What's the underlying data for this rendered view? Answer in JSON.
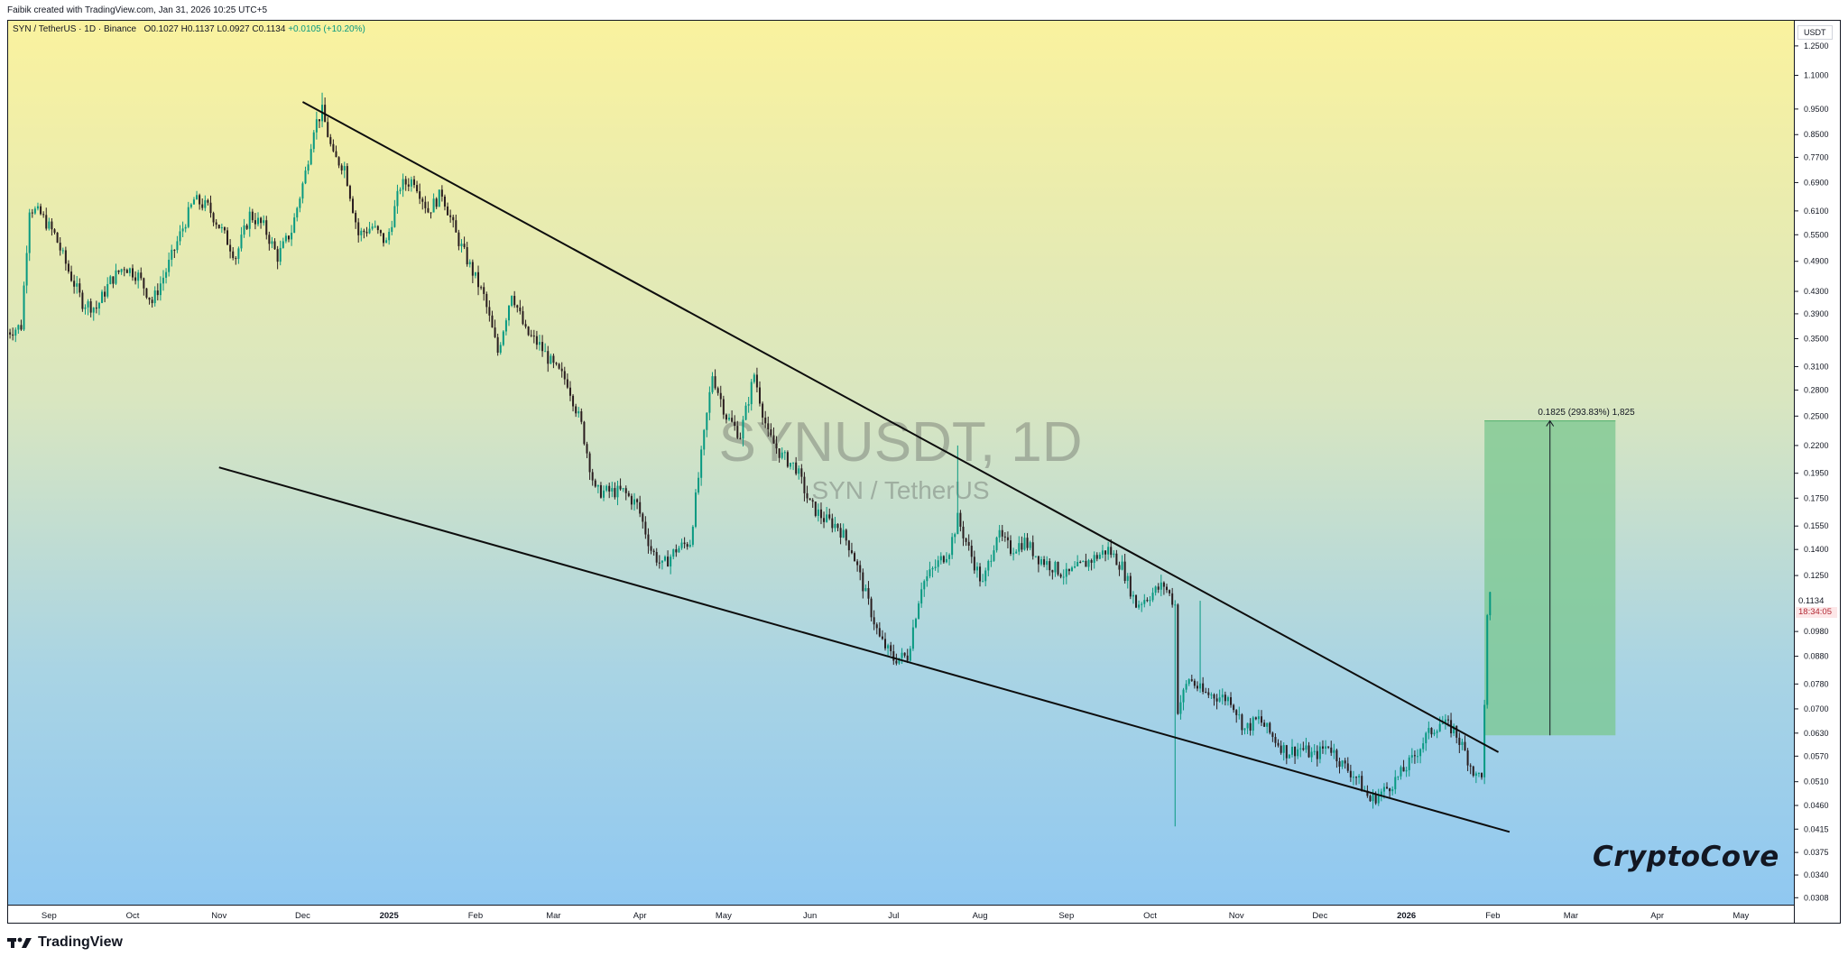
{
  "header": {
    "caption": "Faibik created with TradingView.com, Jan 31, 2026 10:25 UTC+5"
  },
  "legend": {
    "symbol": "SYN / TetherUS · 1D · Binance",
    "ohlc": "O0.1027 H0.1137 L0.0927 C0.1134",
    "change": "+0.0105 (+10.20%)"
  },
  "watermark": {
    "symbol": "SYNUSDT, 1D",
    "pair": "SYN / TetherUS"
  },
  "brand_sign": "CryptoCove",
  "measure_label": "0.1825 (293.83%) 1,825",
  "price_axis": {
    "currency": "USDT",
    "last_price": "0.1134",
    "countdown": "18:34:05"
  },
  "footer": {
    "brand": "TradingView"
  },
  "colors": {
    "candle_up": "#089981",
    "candle_down": "#2a1d1f",
    "target_box": "#79c78f",
    "trendline": "#0d0d0d",
    "bg_top": "#faf29e",
    "bg_bottom": "#8ec7f2"
  },
  "chart_data": {
    "type": "candlestick",
    "scale": "log",
    "ylim": [
      0.03,
      1.4
    ],
    "y_ticks": [
      "1.2500",
      "1.1000",
      "0.9500",
      "0.8500",
      "0.7700",
      "0.6900",
      "0.6100",
      "0.5500",
      "0.4900",
      "0.4300",
      "0.3900",
      "0.3500",
      "0.3100",
      "0.2800",
      "0.2500",
      "0.2200",
      "0.1950",
      "0.1750",
      "0.1550",
      "0.1400",
      "0.1250",
      "0.0980",
      "0.0880",
      "0.0780",
      "0.0700",
      "0.0630",
      "0.0570",
      "0.0510",
      "0.0460",
      "0.0415",
      "0.0375",
      "0.0340",
      "0.0308"
    ],
    "x_range": [
      "2024-08-17",
      "2026-05-20"
    ],
    "x_ticks": [
      {
        "label": "Sep",
        "date": "2024-09-01"
      },
      {
        "label": "Oct",
        "date": "2024-10-01"
      },
      {
        "label": "Nov",
        "date": "2024-11-01"
      },
      {
        "label": "Dec",
        "date": "2024-12-01"
      },
      {
        "label": "2025",
        "date": "2025-01-01"
      },
      {
        "label": "Feb",
        "date": "2025-02-01"
      },
      {
        "label": "Mar",
        "date": "2025-03-01"
      },
      {
        "label": "Apr",
        "date": "2025-04-01"
      },
      {
        "label": "May",
        "date": "2025-05-01"
      },
      {
        "label": "Jun",
        "date": "2025-06-01"
      },
      {
        "label": "Jul",
        "date": "2025-07-01"
      },
      {
        "label": "Aug",
        "date": "2025-08-01"
      },
      {
        "label": "Sep",
        "date": "2025-09-01"
      },
      {
        "label": "Oct",
        "date": "2025-10-01"
      },
      {
        "label": "Nov",
        "date": "2025-11-01"
      },
      {
        "label": "Dec",
        "date": "2025-12-01"
      },
      {
        "label": "2026",
        "date": "2026-01-01"
      },
      {
        "label": "Feb",
        "date": "2026-02-01"
      },
      {
        "label": "Mar",
        "date": "2026-03-01"
      },
      {
        "label": "Apr",
        "date": "2026-04-01"
      },
      {
        "label": "May",
        "date": "2026-05-01"
      }
    ],
    "close_series": [
      [
        "2024-08-17",
        0.36
      ],
      [
        "2024-08-22",
        0.37
      ],
      [
        "2024-08-25",
        0.62
      ],
      [
        "2024-08-29",
        0.6
      ],
      [
        "2024-09-03",
        0.55
      ],
      [
        "2024-09-08",
        0.47
      ],
      [
        "2024-09-13",
        0.41
      ],
      [
        "2024-09-18",
        0.4
      ],
      [
        "2024-09-23",
        0.45
      ],
      [
        "2024-09-28",
        0.48
      ],
      [
        "2024-10-03",
        0.46
      ],
      [
        "2024-10-08",
        0.41
      ],
      [
        "2024-10-13",
        0.47
      ],
      [
        "2024-10-18",
        0.55
      ],
      [
        "2024-10-23",
        0.64
      ],
      [
        "2024-10-28",
        0.62
      ],
      [
        "2024-11-02",
        0.56
      ],
      [
        "2024-11-07",
        0.5
      ],
      [
        "2024-11-12",
        0.6
      ],
      [
        "2024-11-17",
        0.57
      ],
      [
        "2024-11-22",
        0.5
      ],
      [
        "2024-11-27",
        0.56
      ],
      [
        "2024-12-02",
        0.72
      ],
      [
        "2024-12-05",
        0.88
      ],
      [
        "2024-12-08",
        0.94
      ],
      [
        "2024-12-12",
        0.77
      ],
      [
        "2024-12-16",
        0.74
      ],
      [
        "2024-12-21",
        0.55
      ],
      [
        "2024-12-26",
        0.57
      ],
      [
        "2024-12-31",
        0.53
      ],
      [
        "2025-01-05",
        0.68
      ],
      [
        "2025-01-10",
        0.7
      ],
      [
        "2025-01-15",
        0.61
      ],
      [
        "2025-01-20",
        0.66
      ],
      [
        "2025-01-25",
        0.55
      ],
      [
        "2025-01-30",
        0.48
      ],
      [
        "2025-02-04",
        0.42
      ],
      [
        "2025-02-09",
        0.33
      ],
      [
        "2025-02-14",
        0.43
      ],
      [
        "2025-02-19",
        0.36
      ],
      [
        "2025-02-24",
        0.34
      ],
      [
        "2025-03-01",
        0.31
      ],
      [
        "2025-03-06",
        0.29
      ],
      [
        "2025-03-11",
        0.24
      ],
      [
        "2025-03-16",
        0.18
      ],
      [
        "2025-03-21",
        0.18
      ],
      [
        "2025-03-26",
        0.18
      ],
      [
        "2025-03-31",
        0.17
      ],
      [
        "2025-04-05",
        0.14
      ],
      [
        "2025-04-09",
        0.13
      ],
      [
        "2025-04-14",
        0.14
      ],
      [
        "2025-04-19",
        0.145
      ],
      [
        "2025-04-23",
        0.21
      ],
      [
        "2025-04-27",
        0.3
      ],
      [
        "2025-05-02",
        0.25
      ],
      [
        "2025-05-07",
        0.23
      ],
      [
        "2025-05-12",
        0.3
      ],
      [
        "2025-05-17",
        0.23
      ],
      [
        "2025-05-22",
        0.21
      ],
      [
        "2025-05-27",
        0.2
      ],
      [
        "2025-06-01",
        0.17
      ],
      [
        "2025-06-06",
        0.16
      ],
      [
        "2025-06-11",
        0.155
      ],
      [
        "2025-06-16",
        0.14
      ],
      [
        "2025-06-21",
        0.115
      ],
      [
        "2025-06-26",
        0.095
      ],
      [
        "2025-07-01",
        0.087
      ],
      [
        "2025-07-06",
        0.088
      ],
      [
        "2025-07-11",
        0.12
      ],
      [
        "2025-07-16",
        0.13
      ],
      [
        "2025-07-21",
        0.14
      ],
      [
        "2025-07-24",
        0.16
      ],
      [
        "2025-07-28",
        0.14
      ],
      [
        "2025-08-02",
        0.12
      ],
      [
        "2025-08-07",
        0.15
      ],
      [
        "2025-08-12",
        0.14
      ],
      [
        "2025-08-17",
        0.145
      ],
      [
        "2025-08-22",
        0.135
      ],
      [
        "2025-08-27",
        0.13
      ],
      [
        "2025-09-01",
        0.125
      ],
      [
        "2025-09-06",
        0.13
      ],
      [
        "2025-09-11",
        0.135
      ],
      [
        "2025-09-16",
        0.14
      ],
      [
        "2025-09-21",
        0.13
      ],
      [
        "2025-09-26",
        0.11
      ],
      [
        "2025-10-01",
        0.115
      ],
      [
        "2025-10-06",
        0.12
      ],
      [
        "2025-10-10",
        0.11
      ],
      [
        "2025-10-11",
        0.07
      ],
      [
        "2025-10-15",
        0.08
      ],
      [
        "2025-10-20",
        0.075
      ],
      [
        "2025-10-25",
        0.074
      ],
      [
        "2025-10-30",
        0.073
      ],
      [
        "2025-11-04",
        0.064
      ],
      [
        "2025-11-09",
        0.067
      ],
      [
        "2025-11-14",
        0.062
      ],
      [
        "2025-11-19",
        0.058
      ],
      [
        "2025-11-24",
        0.059
      ],
      [
        "2025-11-29",
        0.057
      ],
      [
        "2025-12-04",
        0.06
      ],
      [
        "2025-12-09",
        0.055
      ],
      [
        "2025-12-14",
        0.052
      ],
      [
        "2025-12-19",
        0.047
      ],
      [
        "2025-12-24",
        0.049
      ],
      [
        "2025-12-29",
        0.052
      ],
      [
        "2026-01-03",
        0.056
      ],
      [
        "2026-01-08",
        0.062
      ],
      [
        "2026-01-13",
        0.066
      ],
      [
        "2026-01-18",
        0.064
      ],
      [
        "2026-01-22",
        0.058
      ],
      [
        "2026-01-26",
        0.052
      ],
      [
        "2026-01-28",
        0.053
      ],
      [
        "2026-01-29",
        0.07
      ],
      [
        "2026-01-30",
        0.1027
      ],
      [
        "2026-01-31",
        0.1134
      ]
    ],
    "resistance_line": [
      [
        "2024-12-01",
        0.98
      ],
      [
        "2026-02-03",
        0.058
      ]
    ],
    "support_line": [
      [
        "2024-11-01",
        0.2
      ],
      [
        "2026-02-07",
        0.041
      ]
    ],
    "target_box": {
      "x": [
        "2026-01-29",
        "2026-03-17"
      ],
      "y": [
        0.0624,
        0.2449
      ]
    }
  }
}
